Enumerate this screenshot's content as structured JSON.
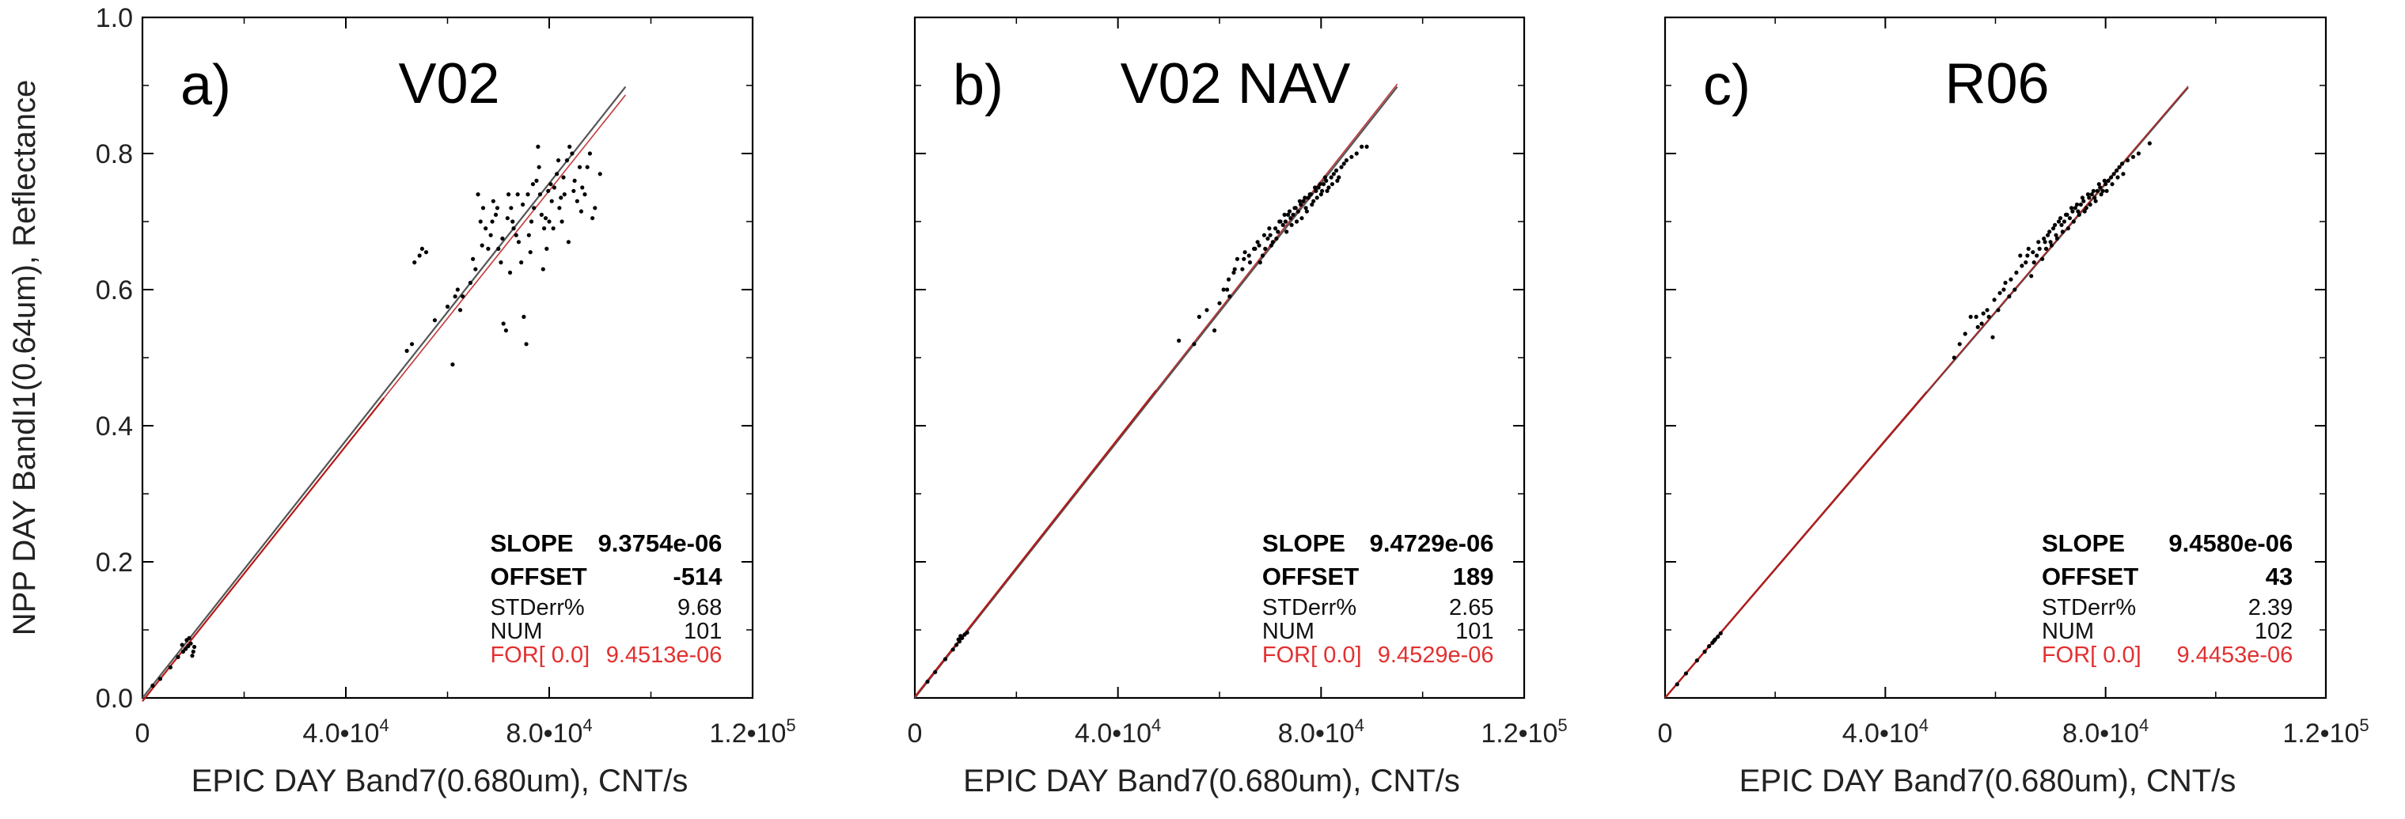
{
  "chart_data": [
    {
      "type": "scatter",
      "panel_label": "a)",
      "title": "V02",
      "xlabel": "EPIC DAY Band7(0.680um), CNT/s",
      "ylabel": "NPP DAY BandI1(0.64um), Reflectance",
      "xlim": [
        0,
        120000
      ],
      "ylim": [
        0,
        1.0
      ],
      "xticks": [
        {
          "mant": "0",
          "exp": ""
        },
        {
          "mant": "4.0•10",
          "exp": "4"
        },
        {
          "mant": "8.0•10",
          "exp": "4"
        },
        {
          "mant": "1.2•10",
          "exp": "5"
        }
      ],
      "yticks": [
        "0.0",
        "0.2",
        "0.4",
        "0.6",
        "0.8",
        "1.0"
      ],
      "stats": {
        "slope_label": "SLOPE",
        "slope": "9.3754e-06",
        "offset_label": "OFFSET",
        "offset": "-514",
        "stderr_label": "STDerr%",
        "stderr": "9.68",
        "num_label": "NUM",
        "num": "101",
        "for_label": "FOR[ 0.0]",
        "for_value": "9.4513e-06"
      },
      "fit_line": {
        "x": [
          0,
          95000
        ],
        "y": [
          -0.0048,
          0.886
        ]
      },
      "forced_line": {
        "x": [
          0,
          95000
        ],
        "y": [
          0.0,
          0.898
        ]
      },
      "points": [
        [
          2000,
          0.018
        ],
        [
          3500,
          0.028
        ],
        [
          5500,
          0.045
        ],
        [
          7000,
          0.06
        ],
        [
          8000,
          0.068
        ],
        [
          8500,
          0.072
        ],
        [
          9000,
          0.076
        ],
        [
          9500,
          0.08
        ],
        [
          8700,
          0.085
        ],
        [
          9200,
          0.088
        ],
        [
          10200,
          0.075
        ],
        [
          7800,
          0.078
        ],
        [
          10000,
          0.068
        ],
        [
          9800,
          0.062
        ],
        [
          52000,
          0.51
        ],
        [
          53000,
          0.52
        ],
        [
          53500,
          0.64
        ],
        [
          54500,
          0.65
        ],
        [
          55000,
          0.66
        ],
        [
          55800,
          0.655
        ],
        [
          57500,
          0.555
        ],
        [
          60000,
          0.575
        ],
        [
          61000,
          0.49
        ],
        [
          62000,
          0.6
        ],
        [
          61500,
          0.59
        ],
        [
          62500,
          0.57
        ],
        [
          63000,
          0.59
        ],
        [
          64500,
          0.61
        ],
        [
          65500,
          0.63
        ],
        [
          66500,
          0.7
        ],
        [
          66000,
          0.74
        ],
        [
          67000,
          0.72
        ],
        [
          67500,
          0.69
        ],
        [
          68000,
          0.66
        ],
        [
          68500,
          0.68
        ],
        [
          69000,
          0.73
        ],
        [
          69500,
          0.71
        ],
        [
          70000,
          0.66
        ],
        [
          70500,
          0.64
        ],
        [
          71000,
          0.55
        ],
        [
          71500,
          0.54
        ],
        [
          72000,
          0.74
        ],
        [
          72500,
          0.72
        ],
        [
          72800,
          0.7
        ],
        [
          73000,
          0.69
        ],
        [
          73500,
          0.68
        ],
        [
          74000,
          0.67
        ],
        [
          74500,
          0.64
        ],
        [
          75000,
          0.56
        ],
        [
          75500,
          0.52
        ],
        [
          76000,
          0.68
        ],
        [
          76500,
          0.7
        ],
        [
          77000,
          0.72
        ],
        [
          77500,
          0.76
        ],
        [
          78000,
          0.78
        ],
        [
          78200,
          0.74
        ],
        [
          78500,
          0.71
        ],
        [
          79000,
          0.69
        ],
        [
          79500,
          0.66
        ],
        [
          80000,
          0.7
        ],
        [
          80500,
          0.73
        ],
        [
          81000,
          0.75
        ],
        [
          81500,
          0.77
        ],
        [
          82000,
          0.72
        ],
        [
          82500,
          0.7
        ],
        [
          83000,
          0.74
        ],
        [
          83500,
          0.79
        ],
        [
          84000,
          0.81
        ],
        [
          84500,
          0.8
        ],
        [
          85000,
          0.76
        ],
        [
          85500,
          0.73
        ],
        [
          86000,
          0.78
        ],
        [
          86500,
          0.75
        ],
        [
          87000,
          0.74
        ],
        [
          87500,
          0.78
        ],
        [
          88000,
          0.8
        ],
        [
          89000,
          0.72
        ],
        [
          90000,
          0.77
        ],
        [
          76800,
          0.755
        ],
        [
          79800,
          0.745
        ],
        [
          82800,
          0.765
        ],
        [
          71800,
          0.705
        ],
        [
          70800,
          0.675
        ],
        [
          74800,
          0.725
        ],
        [
          73800,
          0.74
        ],
        [
          75800,
          0.74
        ],
        [
          69800,
          0.72
        ],
        [
          65000,
          0.645
        ],
        [
          66800,
          0.665
        ],
        [
          68800,
          0.7
        ],
        [
          78800,
          0.63
        ],
        [
          80800,
          0.69
        ],
        [
          83800,
          0.67
        ],
        [
          81800,
          0.79
        ],
        [
          77800,
          0.81
        ],
        [
          80300,
          0.755
        ],
        [
          82300,
          0.735
        ],
        [
          79300,
          0.705
        ],
        [
          76300,
          0.655
        ],
        [
          72300,
          0.625
        ],
        [
          84800,
          0.745
        ],
        [
          86300,
          0.715
        ],
        [
          88500,
          0.705
        ]
      ]
    },
    {
      "type": "scatter",
      "panel_label": "b)",
      "title": "V02 NAV",
      "xlabel": "EPIC DAY Band7(0.680um), CNT/s",
      "ylabel": "",
      "xlim": [
        0,
        120000
      ],
      "ylim": [
        0,
        1.0
      ],
      "xticks": [
        {
          "mant": "0",
          "exp": ""
        },
        {
          "mant": "4.0•10",
          "exp": "4"
        },
        {
          "mant": "8.0•10",
          "exp": "4"
        },
        {
          "mant": "1.2•10",
          "exp": "5"
        }
      ],
      "yticks": [],
      "stats": {
        "slope_label": "SLOPE",
        "slope": "9.4729e-06",
        "offset_label": "OFFSET",
        "offset": "189",
        "stderr_label": "STDerr%",
        "stderr": "2.65",
        "num_label": "NUM",
        "num": "101",
        "for_label": "FOR[ 0.0]",
        "for_value": "9.4529e-06"
      },
      "fit_line": {
        "x": [
          0,
          95000
        ],
        "y": [
          0.0018,
          0.902
        ]
      },
      "forced_line": {
        "x": [
          0,
          95000
        ],
        "y": [
          0.0,
          0.898
        ]
      },
      "points": [
        [
          2500,
          0.024
        ],
        [
          4000,
          0.038
        ],
        [
          6000,
          0.057
        ],
        [
          7500,
          0.071
        ],
        [
          8200,
          0.078
        ],
        [
          8800,
          0.083
        ],
        [
          9300,
          0.088
        ],
        [
          9800,
          0.093
        ],
        [
          10300,
          0.096
        ],
        [
          9000,
          0.091
        ],
        [
          8600,
          0.086
        ],
        [
          52000,
          0.525
        ],
        [
          55000,
          0.52
        ],
        [
          56000,
          0.56
        ],
        [
          57500,
          0.57
        ],
        [
          59000,
          0.54
        ],
        [
          60000,
          0.58
        ],
        [
          61500,
          0.6
        ],
        [
          62000,
          0.59
        ],
        [
          63000,
          0.63
        ],
        [
          63500,
          0.645
        ],
        [
          64500,
          0.63
        ],
        [
          65000,
          0.655
        ],
        [
          66000,
          0.64
        ],
        [
          67000,
          0.66
        ],
        [
          67500,
          0.67
        ],
        [
          68000,
          0.64
        ],
        [
          68500,
          0.65
        ],
        [
          69000,
          0.66
        ],
        [
          69500,
          0.675
        ],
        [
          70000,
          0.68
        ],
        [
          70500,
          0.67
        ],
        [
          71000,
          0.69
        ],
        [
          71500,
          0.685
        ],
        [
          72000,
          0.7
        ],
        [
          72500,
          0.695
        ],
        [
          73000,
          0.7
        ],
        [
          73500,
          0.71
        ],
        [
          74000,
          0.705
        ],
        [
          74500,
          0.71
        ],
        [
          75000,
          0.72
        ],
        [
          75500,
          0.715
        ],
        [
          76000,
          0.725
        ],
        [
          76500,
          0.73
        ],
        [
          77000,
          0.72
        ],
        [
          77500,
          0.735
        ],
        [
          78000,
          0.74
        ],
        [
          78500,
          0.73
        ],
        [
          79000,
          0.745
        ],
        [
          79500,
          0.75
        ],
        [
          80000,
          0.74
        ],
        [
          80500,
          0.755
        ],
        [
          81000,
          0.76
        ],
        [
          81500,
          0.75
        ],
        [
          82000,
          0.765
        ],
        [
          82500,
          0.77
        ],
        [
          83000,
          0.775
        ],
        [
          83500,
          0.765
        ],
        [
          84000,
          0.78
        ],
        [
          84500,
          0.785
        ],
        [
          85000,
          0.79
        ],
        [
          86000,
          0.795
        ],
        [
          87000,
          0.8
        ],
        [
          88000,
          0.81
        ],
        [
          89000,
          0.81
        ],
        [
          77200,
          0.715
        ],
        [
          78200,
          0.725
        ],
        [
          79200,
          0.735
        ],
        [
          80200,
          0.745
        ],
        [
          76200,
          0.705
        ],
        [
          75200,
          0.7
        ],
        [
          74200,
          0.695
        ],
        [
          71200,
          0.675
        ],
        [
          70200,
          0.665
        ],
        [
          73200,
          0.685
        ],
        [
          82200,
          0.755
        ],
        [
          83200,
          0.76
        ],
        [
          81200,
          0.745
        ],
        [
          80800,
          0.765
        ],
        [
          79800,
          0.755
        ],
        [
          78800,
          0.75
        ],
        [
          77800,
          0.74
        ],
        [
          76800,
          0.735
        ],
        [
          75800,
          0.73
        ],
        [
          74800,
          0.72
        ],
        [
          73800,
          0.715
        ],
        [
          72800,
          0.71
        ],
        [
          71800,
          0.7
        ],
        [
          69800,
          0.69
        ],
        [
          68800,
          0.68
        ],
        [
          67800,
          0.665
        ],
        [
          66800,
          0.66
        ],
        [
          65800,
          0.65
        ],
        [
          64800,
          0.645
        ],
        [
          62800,
          0.625
        ],
        [
          61800,
          0.615
        ],
        [
          60800,
          0.6
        ]
      ]
    },
    {
      "type": "scatter",
      "panel_label": "c)",
      "title": "R06",
      "xlabel": "EPIC DAY Band7(0.680um), CNT/s",
      "ylabel": "",
      "xlim": [
        0,
        120000
      ],
      "ylim": [
        0,
        1.0
      ],
      "xticks": [
        {
          "mant": "0",
          "exp": ""
        },
        {
          "mant": "4.0•10",
          "exp": "4"
        },
        {
          "mant": "8.0•10",
          "exp": "4"
        },
        {
          "mant": "1.2•10",
          "exp": "5"
        }
      ],
      "yticks": [],
      "stats": {
        "slope_label": "SLOPE",
        "slope": "9.4580e-06",
        "offset_label": "OFFSET",
        "offset": "43",
        "stderr_label": "STDerr%",
        "stderr": "2.39",
        "num_label": "NUM",
        "num": "102",
        "for_label": "FOR[ 0.0]",
        "for_value": "9.4453e-06"
      },
      "fit_line": {
        "x": [
          0,
          95000
        ],
        "y": [
          0.0004,
          0.899
        ]
      },
      "forced_line": {
        "x": [
          0,
          95000
        ],
        "y": [
          0.0,
          0.897
        ]
      },
      "points": [
        [
          2200,
          0.02
        ],
        [
          3800,
          0.036
        ],
        [
          5800,
          0.055
        ],
        [
          7200,
          0.068
        ],
        [
          8000,
          0.076
        ],
        [
          8600,
          0.081
        ],
        [
          9100,
          0.086
        ],
        [
          9600,
          0.09
        ],
        [
          10100,
          0.095
        ],
        [
          8900,
          0.084
        ],
        [
          52500,
          0.5
        ],
        [
          53500,
          0.52
        ],
        [
          55500,
          0.56
        ],
        [
          56500,
          0.56
        ],
        [
          57500,
          0.55
        ],
        [
          58500,
          0.57
        ],
        [
          59500,
          0.53
        ],
        [
          60500,
          0.57
        ],
        [
          61500,
          0.6
        ],
        [
          62500,
          0.59
        ],
        [
          63500,
          0.6
        ],
        [
          64500,
          0.65
        ],
        [
          65500,
          0.64
        ],
        [
          66000,
          0.66
        ],
        [
          66500,
          0.62
        ],
        [
          67000,
          0.64
        ],
        [
          67500,
          0.65
        ],
        [
          68000,
          0.66
        ],
        [
          68500,
          0.645
        ],
        [
          69000,
          0.67
        ],
        [
          69500,
          0.68
        ],
        [
          70000,
          0.67
        ],
        [
          70500,
          0.69
        ],
        [
          71000,
          0.68
        ],
        [
          71500,
          0.7
        ],
        [
          72000,
          0.695
        ],
        [
          72500,
          0.7
        ],
        [
          73000,
          0.71
        ],
        [
          73500,
          0.705
        ],
        [
          74000,
          0.715
        ],
        [
          74500,
          0.72
        ],
        [
          75000,
          0.715
        ],
        [
          75500,
          0.725
        ],
        [
          76000,
          0.73
        ],
        [
          76500,
          0.72
        ],
        [
          77000,
          0.735
        ],
        [
          77500,
          0.74
        ],
        [
          78000,
          0.735
        ],
        [
          78500,
          0.745
        ],
        [
          79000,
          0.75
        ],
        [
          79500,
          0.745
        ],
        [
          80000,
          0.755
        ],
        [
          80500,
          0.76
        ],
        [
          81000,
          0.765
        ],
        [
          81500,
          0.77
        ],
        [
          82000,
          0.775
        ],
        [
          82500,
          0.78
        ],
        [
          83000,
          0.785
        ],
        [
          84000,
          0.79
        ],
        [
          85000,
          0.795
        ],
        [
          86000,
          0.8
        ],
        [
          88000,
          0.815
        ],
        [
          77200,
          0.725
        ],
        [
          78200,
          0.73
        ],
        [
          79200,
          0.74
        ],
        [
          76200,
          0.715
        ],
        [
          75200,
          0.71
        ],
        [
          74200,
          0.7
        ],
        [
          73200,
          0.69
        ],
        [
          72200,
          0.685
        ],
        [
          71200,
          0.675
        ],
        [
          70200,
          0.665
        ],
        [
          69200,
          0.66
        ],
        [
          80200,
          0.745
        ],
        [
          81200,
          0.755
        ],
        [
          82200,
          0.765
        ],
        [
          83200,
          0.77
        ],
        [
          79800,
          0.76
        ],
        [
          78800,
          0.755
        ],
        [
          77800,
          0.745
        ],
        [
          76800,
          0.74
        ],
        [
          75800,
          0.735
        ],
        [
          74800,
          0.725
        ],
        [
          73800,
          0.72
        ],
        [
          72800,
          0.71
        ],
        [
          71800,
          0.705
        ],
        [
          70800,
          0.695
        ],
        [
          69800,
          0.685
        ],
        [
          68800,
          0.675
        ],
        [
          67800,
          0.67
        ],
        [
          66800,
          0.655
        ],
        [
          65800,
          0.65
        ],
        [
          64800,
          0.635
        ],
        [
          63800,
          0.625
        ],
        [
          62800,
          0.615
        ],
        [
          61800,
          0.61
        ],
        [
          60800,
          0.595
        ],
        [
          59800,
          0.585
        ],
        [
          58800,
          0.56
        ],
        [
          57800,
          0.565
        ],
        [
          56800,
          0.545
        ],
        [
          54500,
          0.535
        ]
      ]
    }
  ]
}
